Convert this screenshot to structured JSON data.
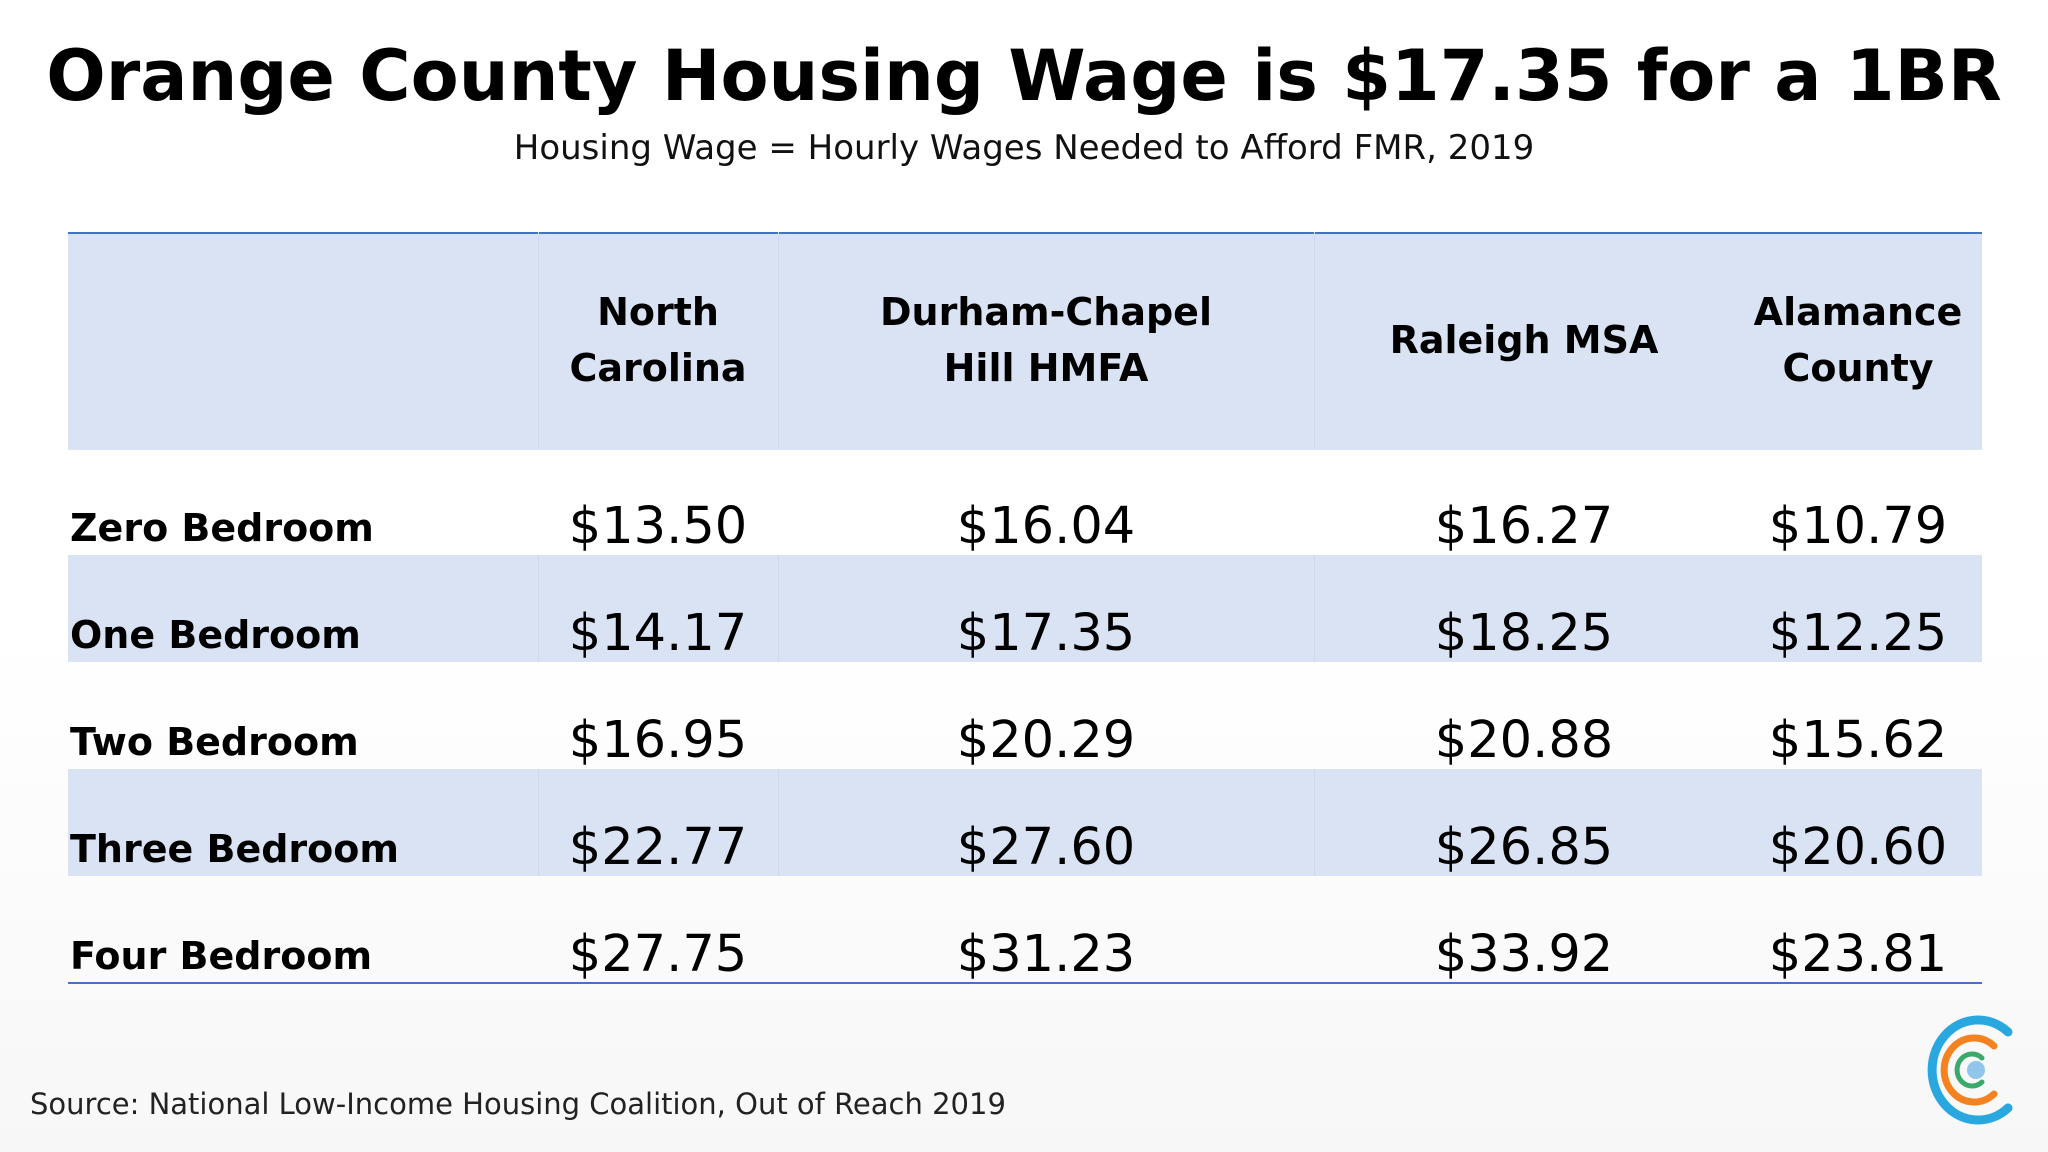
{
  "slide": {
    "title": "Orange County Housing Wage is $17.35 for a 1BR",
    "subtitle": "Housing Wage = Hourly Wages Needed to Afford FMR, 2019",
    "source": "Source: National Low-Income Housing Coalition, Out of Reach 2019",
    "logo_icon": "concentric-c-logo-icon"
  },
  "table": {
    "columns": [
      {
        "line1": "North",
        "line2": "Carolina"
      },
      {
        "line1": "Durham-Chapel",
        "line2": "Hill HMFA"
      },
      {
        "line1": "Raleigh MSA",
        "line2": ""
      },
      {
        "line1": "Alamance",
        "line2": "County"
      }
    ],
    "rows": [
      {
        "label": "Zero Bedroom",
        "values": [
          "$13.50",
          "$16.04",
          "$16.27",
          "$10.79"
        ]
      },
      {
        "label": "One Bedroom",
        "values": [
          "$14.17",
          "$17.35",
          "$18.25",
          "$12.25"
        ]
      },
      {
        "label": "Two Bedroom",
        "values": [
          "$16.95",
          "$20.29",
          "$20.88",
          "$15.62"
        ]
      },
      {
        "label": "Three Bedroom",
        "values": [
          "$22.77",
          "$27.60",
          "$26.85",
          "$20.60"
        ]
      },
      {
        "label": "Four Bedroom",
        "values": [
          "$27.75",
          "$31.23",
          "$33.92",
          "$23.81"
        ]
      }
    ]
  },
  "colors": {
    "header_fill": "#dae3f3",
    "rule": "#4472c4",
    "logo_blue": "#29a8e0",
    "logo_orange": "#f58220",
    "logo_green": "#3aaa6b",
    "logo_dot": "#8fc6ea"
  }
}
